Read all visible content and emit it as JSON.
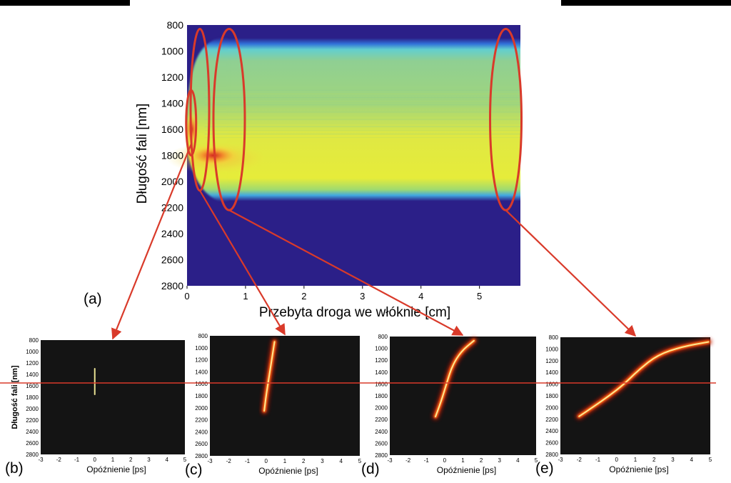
{
  "chart_data": [
    {
      "type": "heatmap",
      "panel_label": "(a)",
      "xlabel": "Przebyta droga we włóknie [cm]",
      "ylabel": "Długość fali [nm]",
      "xlim": [
        0,
        5.7
      ],
      "ylim": [
        800,
        2800
      ],
      "y_inverted": true,
      "xticks": [
        0,
        1,
        2,
        3,
        4,
        5
      ],
      "yticks": [
        800,
        1000,
        1200,
        1400,
        1600,
        1800,
        2000,
        2200,
        2400,
        2600,
        2800
      ],
      "colormap": [
        "#2b1f88",
        "#2f6fd8",
        "#5ad0d8",
        "#8fd08a",
        "#e8ec3a",
        "#f6a030",
        "#d02020"
      ],
      "spectrum_band_nm": [
        900,
        2150
      ],
      "highlight_color": "#d93a2a",
      "highlights": [
        {
          "target": "(b)",
          "x_cm": 0.07,
          "y_nm": [
            1300,
            1800
          ]
        },
        {
          "target": "(c)",
          "x_cm": 0.22,
          "y_nm": [
            830,
            2070
          ]
        },
        {
          "target": "(d)",
          "x_cm": 0.72,
          "y_nm": [
            830,
            2220
          ]
        },
        {
          "target": "(e)",
          "x_cm": 5.45,
          "y_nm": [
            830,
            2220
          ]
        }
      ]
    },
    {
      "type": "heatmap",
      "panel_label": "(b)",
      "xlabel": "Opóźnienie [ps]",
      "ylabel": "Długość fali [nm]",
      "xlim": [
        -3,
        5
      ],
      "ylim": [
        800,
        2800
      ],
      "y_inverted": true,
      "xticks": [
        -3,
        -2,
        -1,
        0,
        1,
        2,
        3,
        4,
        5
      ],
      "yticks": [
        800,
        1000,
        1200,
        1400,
        1600,
        1800,
        2000,
        2200,
        2400,
        2600,
        2800
      ],
      "trace": [
        [
          0.0,
          1300
        ],
        [
          0.0,
          1450
        ],
        [
          0.0,
          1600
        ],
        [
          0.0,
          1750
        ]
      ]
    },
    {
      "type": "heatmap",
      "panel_label": "(c)",
      "xlabel": "Opóźnienie [ps]",
      "ylabel": "",
      "xlim": [
        -3,
        5
      ],
      "ylim": [
        800,
        2800
      ],
      "y_inverted": true,
      "xticks": [
        -3,
        -2,
        -1,
        0,
        1,
        2,
        3,
        4,
        5
      ],
      "yticks": [
        800,
        1000,
        1200,
        1400,
        1600,
        1800,
        2000,
        2200,
        2400,
        2600,
        2800
      ],
      "trace": [
        [
          0.45,
          900
        ],
        [
          0.3,
          1200
        ],
        [
          0.15,
          1500
        ],
        [
          0.0,
          1800
        ],
        [
          -0.1,
          2050
        ]
      ]
    },
    {
      "type": "heatmap",
      "panel_label": "(d)",
      "xlabel": "Opóźnienie [ps]",
      "ylabel": "",
      "xlim": [
        -3,
        5
      ],
      "ylim": [
        800,
        2800
      ],
      "y_inverted": true,
      "xticks": [
        -3,
        -2,
        -1,
        0,
        1,
        2,
        3,
        4,
        5
      ],
      "yticks": [
        800,
        1000,
        1200,
        1400,
        1600,
        1800,
        2000,
        2200,
        2400,
        2600,
        2800
      ],
      "trace": [
        [
          1.6,
          870
        ],
        [
          0.9,
          1050
        ],
        [
          0.4,
          1300
        ],
        [
          0.1,
          1600
        ],
        [
          -0.2,
          1900
        ],
        [
          -0.5,
          2150
        ]
      ]
    },
    {
      "type": "heatmap",
      "panel_label": "(e)",
      "xlabel": "Opóźnienie [ps]",
      "ylabel": "",
      "xlim": [
        -3,
        5
      ],
      "ylim": [
        800,
        2800
      ],
      "y_inverted": true,
      "xticks": [
        -3,
        -2,
        -1,
        0,
        1,
        2,
        3,
        4,
        5
      ],
      "yticks": [
        800,
        1000,
        1200,
        1400,
        1600,
        1800,
        2000,
        2200,
        2400,
        2600,
        2800
      ],
      "trace": [
        [
          4.9,
          880
        ],
        [
          3.5,
          960
        ],
        [
          2.2,
          1100
        ],
        [
          1.2,
          1350
        ],
        [
          0.4,
          1600
        ],
        [
          -0.4,
          1800
        ],
        [
          -1.3,
          2000
        ],
        [
          -2.0,
          2150
        ]
      ]
    }
  ],
  "reference_line_nm": 1550,
  "colors": {
    "annotation": "#d93a2a",
    "dark_background": "#141414",
    "trace_core": "#fff6a0",
    "trace_glow": "#ff6a10"
  }
}
